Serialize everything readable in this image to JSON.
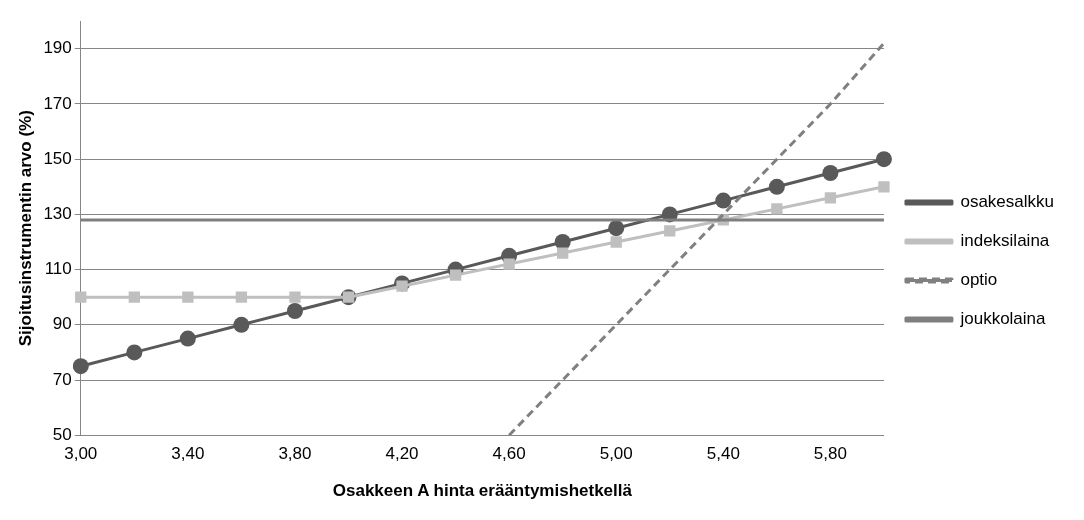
{
  "chart_data": {
    "type": "line",
    "xlabel": "Osakkeen A hinta erääntymishetkellä",
    "ylabel": "Sijoitusinstrumentin arvo (%)",
    "categories": [
      "3,00",
      null,
      "3,40",
      null,
      "3,80",
      null,
      "4,20",
      null,
      "4,60",
      null,
      "5,00",
      null,
      "5,40",
      null,
      "5,80",
      null
    ],
    "series": [
      {
        "name": "osakesalkku",
        "color": "#595959",
        "marker": "circle",
        "line_style": "solid",
        "values": [
          75,
          80,
          85,
          90,
          95,
          100,
          105,
          110,
          115,
          120,
          125,
          130,
          135,
          140,
          145,
          150
        ]
      },
      {
        "name": "indeksilaina",
        "color": "#bfbfbf",
        "marker": "square",
        "line_style": "solid",
        "values": [
          100,
          100,
          100,
          100,
          100,
          100,
          104,
          108,
          112,
          116,
          120,
          124,
          128,
          132,
          136,
          140
        ]
      },
      {
        "name": "optio",
        "color": "#808080",
        "marker": "none",
        "line_style": "dashed",
        "values": [
          null,
          null,
          null,
          null,
          null,
          null,
          null,
          null,
          50,
          70,
          90,
          110,
          130,
          150,
          170,
          192
        ]
      },
      {
        "name": "joukkolaina",
        "color": "#7f7f7f",
        "marker": "none",
        "line_style": "solid",
        "values": [
          128,
          128,
          128,
          128,
          128,
          128,
          128,
          128,
          128,
          128,
          128,
          128,
          128,
          128,
          128,
          128
        ]
      }
    ],
    "ylim": [
      50,
      200
    ],
    "yticks": [
      50,
      70,
      90,
      110,
      130,
      150,
      170,
      190
    ],
    "grid": "y",
    "legend": "right"
  }
}
